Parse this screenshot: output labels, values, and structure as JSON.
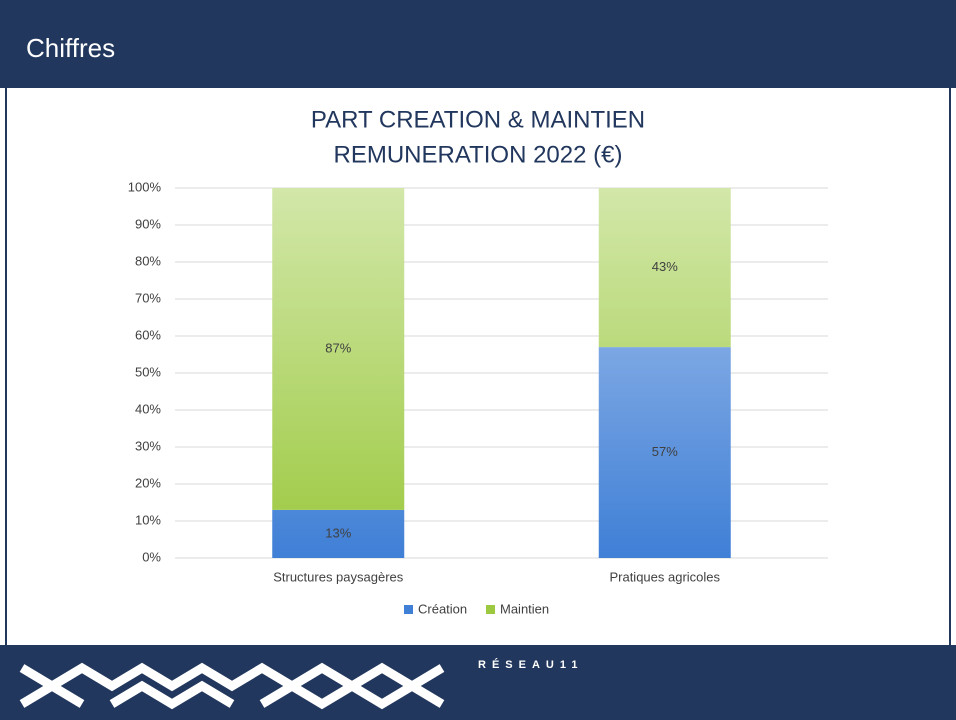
{
  "header": {
    "title": "Chiffres"
  },
  "chart_data": {
    "type": "stacked_bar",
    "title": "PART CREATION & MAINTIEN",
    "subtitle": "REMUNERATION 2022 (€)",
    "categories": [
      "Structures paysagères",
      "Pratiques agricoles"
    ],
    "series": [
      {
        "name": "Création",
        "color": "#3f7fd6",
        "values": [
          13,
          57
        ],
        "value_labels": [
          "13%",
          "57%"
        ]
      },
      {
        "name": "Maintien",
        "color": "#9cc940",
        "values": [
          87,
          43
        ],
        "value_labels": [
          "87%",
          "43%"
        ]
      }
    ],
    "ylim": [
      0,
      100
    ],
    "yticks": [
      {
        "value": 0,
        "label": "0%"
      },
      {
        "value": 10,
        "label": "10%"
      },
      {
        "value": 20,
        "label": "20%"
      },
      {
        "value": 30,
        "label": "30%"
      },
      {
        "value": 40,
        "label": "40%"
      },
      {
        "value": 50,
        "label": "50%"
      },
      {
        "value": 60,
        "label": "60%"
      },
      {
        "value": 70,
        "label": "70%"
      },
      {
        "value": 80,
        "label": "80%"
      },
      {
        "value": 90,
        "label": "90%"
      },
      {
        "value": 100,
        "label": "100%"
      }
    ],
    "grid": true,
    "legend": "bottom"
  },
  "footer": {
    "logo": "RÉSEAU11"
  }
}
